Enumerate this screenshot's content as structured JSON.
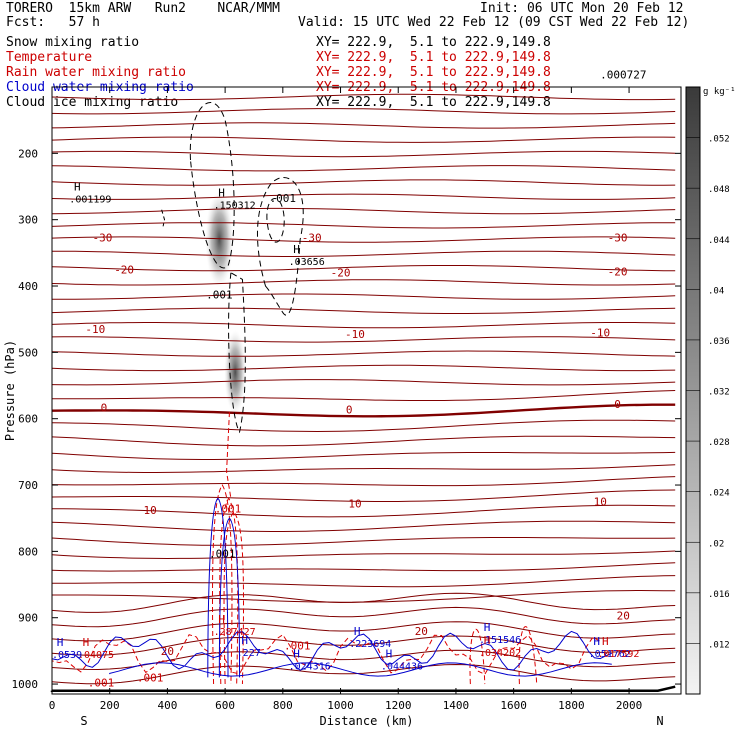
{
  "header": {
    "left1": "TORERO  15km ARW   Run2    NCAR/MMM",
    "left2": "Fcst:   57 h",
    "init": "Init: 06 UTC Mon 20 Feb 12",
    "valid": "Valid: 15 UTC Wed 22 Feb 12 (09 CST Wed 22 Feb 12)"
  },
  "fields": [
    {
      "name": "Snow mixing ratio",
      "color": "#000000",
      "xy": "XY= 222.9,  5.1 to 222.9,149.8"
    },
    {
      "name": "Temperature",
      "color": "#cc0000",
      "xy": "XY= 222.9,  5.1 to 222.9,149.8"
    },
    {
      "name": "Rain water mixing ratio",
      "color": "#cc0000",
      "xy": "XY= 222.9,  5.1 to 222.9,149.8"
    },
    {
      "name": "Cloud water mixing ratio",
      "color": "#0000cc",
      "xy": "XY= 222.9,  5.1 to 222.9,149.8"
    },
    {
      "name": "Cloud ice mixing ratio",
      "color": "#000000",
      "xy": "XY= 222.9,  5.1 to 222.9,149.8"
    }
  ],
  "chart_data": {
    "type": "cross-section",
    "xlabel": "Distance (km)",
    "ylabel": "Pressure (hPa)",
    "xlim": [
      0,
      2180
    ],
    "ylim": [
      1015,
      100
    ],
    "x_ticks": [
      0,
      200,
      400,
      600,
      800,
      1000,
      1200,
      1400,
      1600,
      1800,
      2000
    ],
    "y_ticks": [
      200,
      300,
      400,
      500,
      600,
      700,
      800,
      900,
      1000
    ],
    "x_end_labels": [
      "S",
      "N"
    ],
    "colorbar": {
      "unit": "g kg⁻¹",
      "ticks": [
        ".012",
        ".016",
        ".02",
        ".024",
        ".028",
        ".032",
        ".036",
        ".04",
        ".044",
        ".048",
        ".052"
      ],
      "range": [
        0.008,
        0.056
      ]
    },
    "temperature_labels": [
      {
        "text": "-30",
        "x": 175,
        "p": 327
      },
      {
        "text": "-30",
        "x": 900,
        "p": 327
      },
      {
        "text": "-30",
        "x": 1960,
        "p": 327
      },
      {
        "text": "-20",
        "x": 250,
        "p": 375
      },
      {
        "text": "-20",
        "x": 1000,
        "p": 380
      },
      {
        "text": "-20",
        "x": 1960,
        "p": 378
      },
      {
        "text": "-10",
        "x": 150,
        "p": 465
      },
      {
        "text": "-10",
        "x": 1050,
        "p": 472
      },
      {
        "text": "-10",
        "x": 1900,
        "p": 470
      },
      {
        "text": "0",
        "x": 180,
        "p": 583
      },
      {
        "text": "0",
        "x": 1030,
        "p": 586
      },
      {
        "text": "0",
        "x": 1960,
        "p": 578
      },
      {
        "text": "10",
        "x": 340,
        "p": 738
      },
      {
        "text": "10",
        "x": 1050,
        "p": 728
      },
      {
        "text": "10",
        "x": 1900,
        "p": 725
      },
      {
        "text": "20",
        "x": 400,
        "p": 950
      },
      {
        "text": "20",
        "x": 1280,
        "p": 920
      },
      {
        "text": "20",
        "x": 1980,
        "p": 897
      }
    ],
    "snow_labels": [
      {
        "text": ".001",
        "x": 800,
        "p": 267
      },
      {
        "text": ".001",
        "x": 580,
        "p": 413
      }
    ],
    "ice_labels": [
      {
        "text": ".000727",
        "x": 1980,
        "p": 81
      }
    ],
    "rain_labels": [
      {
        "text": ".001",
        "x": 610,
        "p": 735
      },
      {
        "text": ".001",
        "x": 170,
        "p": 998
      },
      {
        "text": ".001",
        "x": 340,
        "p": 990
      },
      {
        "text": ".001",
        "x": 850,
        "p": 942
      }
    ],
    "cloud_labels": [
      {
        "text": ".001",
        "x": 590,
        "p": 803
      }
    ],
    "maxima": [
      {
        "value": ".001199",
        "x": 60,
        "p": 268,
        "color": "#000000",
        "kind": "ice"
      },
      {
        "value": ".150312",
        "x": 560,
        "p": 277,
        "color": "#000000",
        "kind": "snow"
      },
      {
        "value": ".03656",
        "x": 820,
        "p": 362,
        "color": "#000000",
        "kind": "snow"
      },
      {
        "value": ".287427",
        "x": 560,
        "p": 920,
        "color": "#cc0000",
        "kind": "rain"
      },
      {
        "value": ".024316",
        "x": 820,
        "p": 972,
        "color": "#0000cc",
        "kind": "cloud"
      },
      {
        "value": ".044436",
        "x": 1140,
        "p": 972,
        "color": "#0000cc",
        "kind": "cloud"
      },
      {
        "value": ".223694",
        "x": 1030,
        "p": 938,
        "color": "#0000cc",
        "kind": "cloud"
      },
      {
        "value": ".151546",
        "x": 1480,
        "p": 932,
        "color": "#0000cc",
        "kind": "cloud"
      },
      {
        "value": ".034202",
        "x": 1480,
        "p": 952,
        "color": "#cc0000",
        "kind": "rain"
      },
      {
        "value": ".227",
        "x": 640,
        "p": 952,
        "color": "#0000cc",
        "kind": "cloud"
      },
      {
        "value": ".04075",
        "x": 90,
        "p": 955,
        "color": "#cc0000",
        "kind": "rain"
      },
      {
        "value": ".0539",
        "x": 0,
        "p": 955,
        "color": "#0000cc",
        "kind": "cloud"
      },
      {
        "value": ".051762",
        "x": 1860,
        "p": 953,
        "color": "#0000cc",
        "kind": "cloud"
      },
      {
        "value": ".017592",
        "x": 1890,
        "p": 953,
        "color": "#cc0000",
        "kind": "rain"
      }
    ]
  }
}
